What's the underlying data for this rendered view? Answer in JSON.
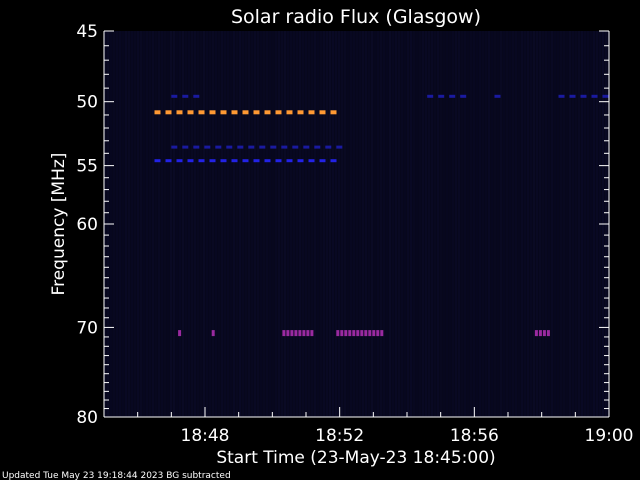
{
  "chart_data": {
    "type": "heatmap",
    "title": "Solar radio Flux (Glasgow)",
    "ylabel": "Frequency [MHz]",
    "xlabel": "Start Time (23-May-23 18:45:00)",
    "footer": "Updated Tue May 23 19:18:44 2023   BG subtracted",
    "x_unit": "minutes after 18:45",
    "xlim": [
      0,
      15
    ],
    "ylim": [
      45,
      80
    ],
    "y_axis_inverted": true,
    "x_ticks": [
      {
        "value": 3,
        "label": "18:48"
      },
      {
        "value": 7,
        "label": "18:52"
      },
      {
        "value": 11,
        "label": "18:56"
      },
      {
        "value": 15,
        "label": "19:00"
      }
    ],
    "y_ticks": [
      {
        "value": 45,
        "label": "45"
      },
      {
        "value": 50,
        "label": "50"
      },
      {
        "value": 55,
        "label": "55"
      },
      {
        "value": 60,
        "label": "60"
      },
      {
        "value": 70,
        "label": "70"
      },
      {
        "value": 80,
        "label": "80"
      }
    ],
    "colors": {
      "background": "#000000",
      "plot_background": "#07071c",
      "axes": "#ffffff",
      "text": "#ffffff",
      "intensity_low": "#1a1aa0",
      "intensity_mid": "#2222e6",
      "intensity_high": "#ff9933",
      "intensity_burst": "#9a2aa0"
    },
    "grid": false,
    "features": [
      {
        "name": "band",
        "freq_mhz": 50.8,
        "t_start": 1.5,
        "t_end": 7.1,
        "intensity": "high"
      },
      {
        "name": "band",
        "freq_mhz": 53.5,
        "t_start": 2.0,
        "t_end": 7.1,
        "intensity": "low"
      },
      {
        "name": "band",
        "freq_mhz": 54.6,
        "t_start": 1.5,
        "t_end": 7.1,
        "intensity": "mid"
      },
      {
        "name": "burst",
        "freq_mhz": 70.6,
        "t_start": 5.3,
        "t_end": 6.3,
        "intensity": "burst"
      },
      {
        "name": "burst",
        "freq_mhz": 70.6,
        "t_start": 6.9,
        "t_end": 8.3,
        "intensity": "burst"
      },
      {
        "name": "burst",
        "freq_mhz": 70.6,
        "t_start": 12.8,
        "t_end": 13.3,
        "intensity": "burst"
      },
      {
        "name": "burst",
        "freq_mhz": 70.6,
        "t_start": 3.2,
        "t_end": 3.3,
        "intensity": "burst"
      },
      {
        "name": "burst",
        "freq_mhz": 70.6,
        "t_start": 2.2,
        "t_end": 2.3,
        "intensity": "burst"
      },
      {
        "name": "flecks",
        "freq_mhz": 49.6,
        "t_start": 9.6,
        "t_end": 10.8,
        "intensity": "low"
      },
      {
        "name": "flecks",
        "freq_mhz": 49.6,
        "t_start": 13.5,
        "t_end": 15.0,
        "intensity": "low"
      },
      {
        "name": "flecks",
        "freq_mhz": 49.6,
        "t_start": 11.6,
        "t_end": 12.0,
        "intensity": "low"
      },
      {
        "name": "flecks",
        "freq_mhz": 49.6,
        "t_start": 2.0,
        "t_end": 2.9,
        "intensity": "low"
      }
    ]
  }
}
